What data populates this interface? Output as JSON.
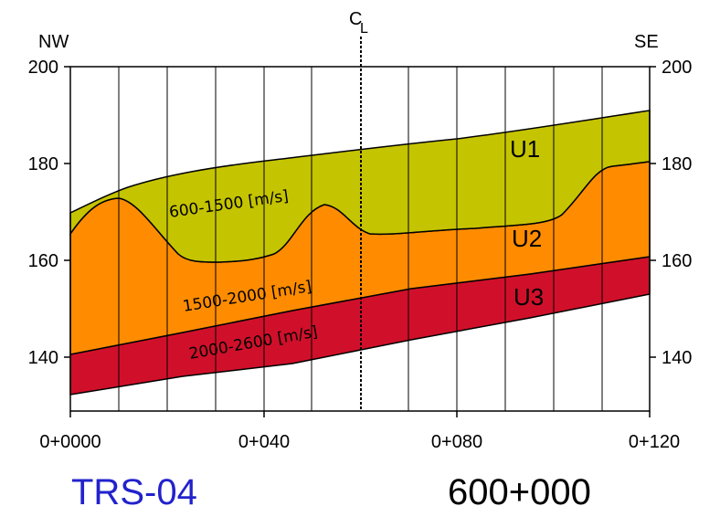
{
  "header": {
    "left_direction": "NW",
    "right_direction": "SE",
    "centerline_symbol": "C",
    "centerline_subscript": "L"
  },
  "axes": {
    "y_ticks": [
      "200",
      "180",
      "160",
      "140"
    ],
    "x_ticks": [
      "0+0000",
      "0+040",
      "0+080",
      "0+120"
    ]
  },
  "layers": {
    "u1": {
      "name": "U1",
      "velocity": "600-1500 [m/s]",
      "color": "#c5c400"
    },
    "u2": {
      "name": "U2",
      "velocity": "1500-2000 [m/s]",
      "color": "#ff8c00"
    },
    "u3": {
      "name": "U3",
      "velocity": "2000-2600 [m/s]",
      "color": "#d0102a"
    }
  },
  "footer": {
    "profile_id": "TRS-04",
    "profile_id_color": "#2222cc",
    "chainage": "600+000"
  }
}
